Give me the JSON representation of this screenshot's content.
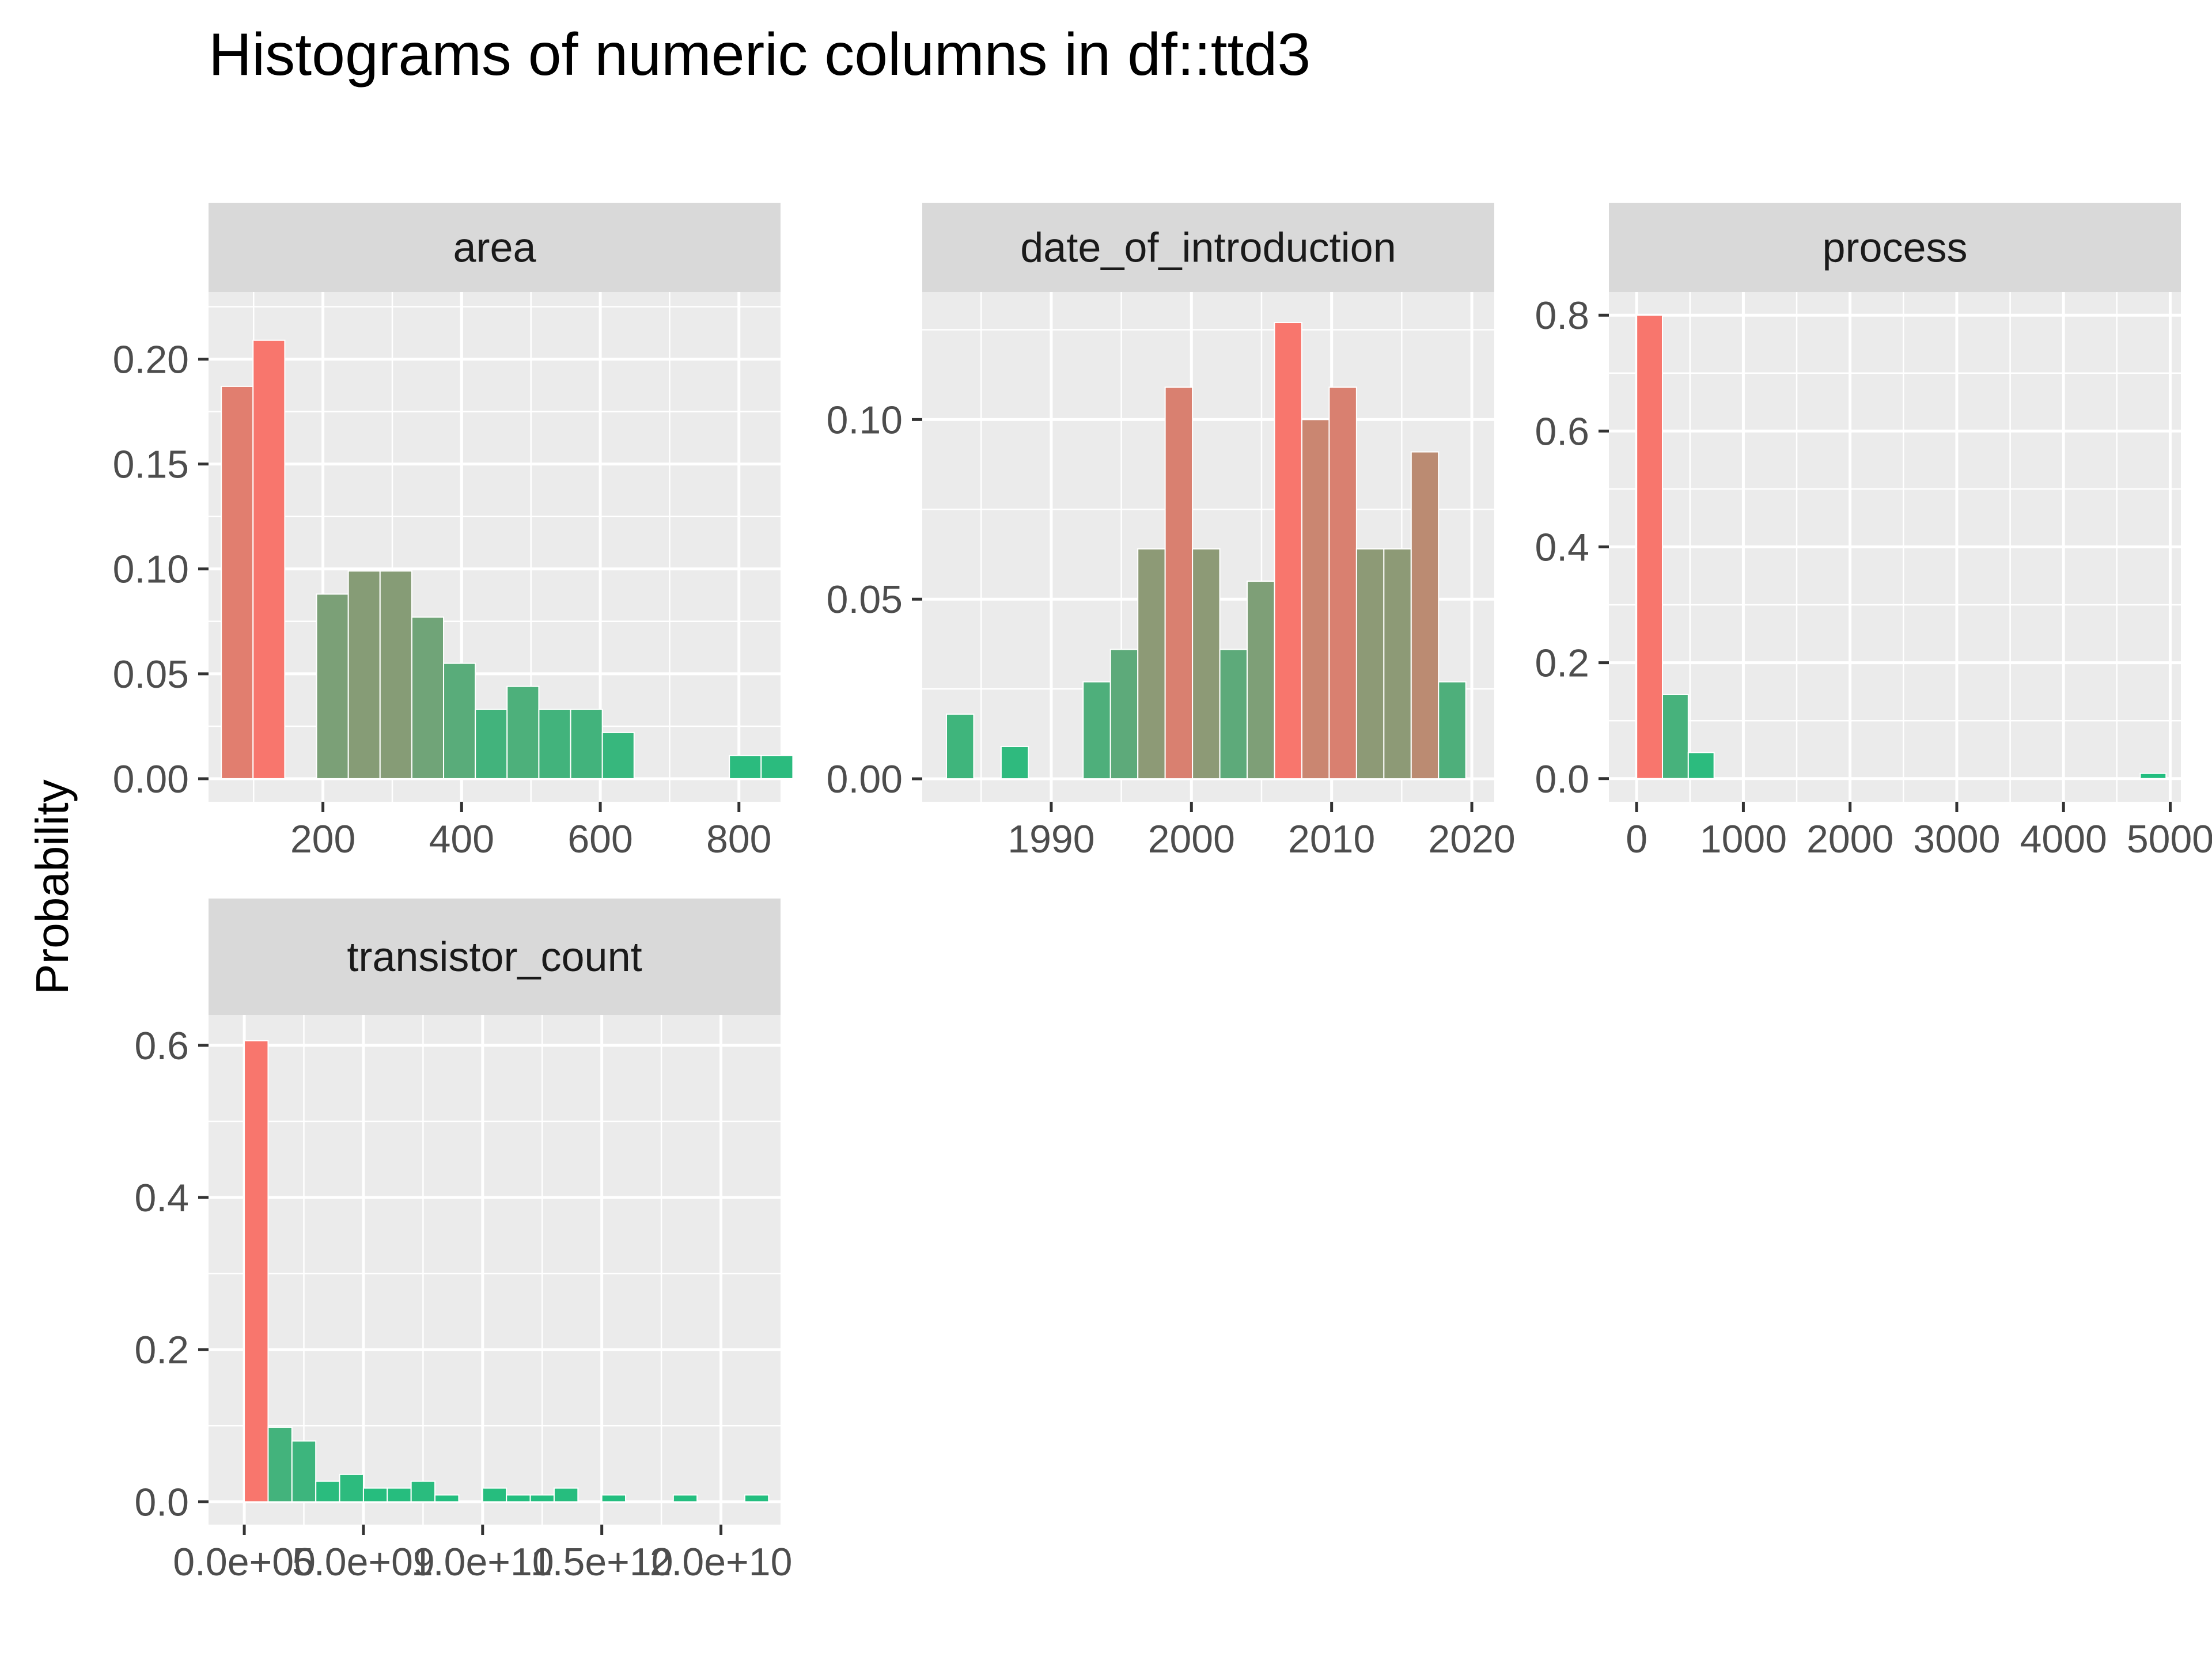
{
  "chart_data": {
    "type": "bar",
    "title": "Histograms of numeric columns in df::ttd3",
    "ylabel": "Probability",
    "xlabel": "",
    "legend": "none",
    "grid": true,
    "colors": {
      "low": "#20BF7F",
      "high": "#F8766D",
      "panel_background": "#EBEBEB",
      "strip_background": "#D9D9D9",
      "gridline": "#FFFFFF"
    },
    "facets": [
      {
        "name": "area",
        "xlim": [
          35,
          860
        ],
        "ylim": [
          -0.011,
          0.232
        ],
        "bin_width": 45.8,
        "x_ticks": [
          200,
          400,
          600,
          800
        ],
        "x_tick_labels": [
          "200",
          "400",
          "600",
          "800"
        ],
        "y_ticks": [
          0.0,
          0.05,
          0.1,
          0.15,
          0.2
        ],
        "y_tick_labels": [
          "0.00",
          "0.05",
          "0.10",
          "0.15",
          "0.20"
        ],
        "bins": [
          {
            "x": 76.3,
            "y": 0.187
          },
          {
            "x": 122.1,
            "y": 0.209
          },
          {
            "x": 167.9,
            "y": 0.0
          },
          {
            "x": 213.7,
            "y": 0.088
          },
          {
            "x": 259.5,
            "y": 0.099
          },
          {
            "x": 305.3,
            "y": 0.099
          },
          {
            "x": 351.1,
            "y": 0.077
          },
          {
            "x": 396.9,
            "y": 0.055
          },
          {
            "x": 442.7,
            "y": 0.033
          },
          {
            "x": 488.5,
            "y": 0.044
          },
          {
            "x": 534.3,
            "y": 0.033
          },
          {
            "x": 580.1,
            "y": 0.033
          },
          {
            "x": 625.9,
            "y": 0.022
          },
          {
            "x": 671.7,
            "y": 0.0
          },
          {
            "x": 717.5,
            "y": 0.0
          },
          {
            "x": 763.3,
            "y": 0.0
          },
          {
            "x": 809.1,
            "y": 0.011
          },
          {
            "x": 854.9,
            "y": 0.011
          }
        ]
      },
      {
        "name": "date_of_introduction",
        "xlim": [
          1980.8,
          2021.6
        ],
        "ylim": [
          -0.0064,
          0.1355
        ],
        "bin_width": 1.95,
        "x_ticks": [
          1990,
          2000,
          2010,
          2020
        ],
        "x_tick_labels": [
          "1990",
          "2000",
          "2010",
          "2020"
        ],
        "y_ticks": [
          0.0,
          0.05,
          0.1
        ],
        "y_tick_labels": [
          "0.00",
          "0.05",
          "0.10"
        ],
        "bins": [
          {
            "x": 1983.5,
            "y": 0.018
          },
          {
            "x": 1985.45,
            "y": 0.0
          },
          {
            "x": 1987.4,
            "y": 0.009
          },
          {
            "x": 1989.35,
            "y": 0.0
          },
          {
            "x": 1991.3,
            "y": 0.0
          },
          {
            "x": 1993.25,
            "y": 0.027
          },
          {
            "x": 1995.2,
            "y": 0.036
          },
          {
            "x": 1997.15,
            "y": 0.064
          },
          {
            "x": 1999.1,
            "y": 0.109
          },
          {
            "x": 2001.05,
            "y": 0.064
          },
          {
            "x": 2003.0,
            "y": 0.036
          },
          {
            "x": 2004.95,
            "y": 0.055
          },
          {
            "x": 2006.9,
            "y": 0.127
          },
          {
            "x": 2008.85,
            "y": 0.1
          },
          {
            "x": 2010.8,
            "y": 0.109
          },
          {
            "x": 2012.75,
            "y": 0.064
          },
          {
            "x": 2014.7,
            "y": 0.064
          },
          {
            "x": 2016.65,
            "y": 0.091
          },
          {
            "x": 2018.6,
            "y": 0.027
          }
        ]
      },
      {
        "name": "process",
        "xlim": [
          -260,
          5100
        ],
        "ylim": [
          -0.04,
          0.84
        ],
        "bin_width": 242,
        "x_ticks": [
          0,
          1000,
          2000,
          3000,
          4000,
          5000
        ],
        "x_tick_labels": [
          "0",
          "1000",
          "2000",
          "3000",
          "4000",
          "5000"
        ],
        "y_ticks": [
          0.0,
          0.2,
          0.4,
          0.6,
          0.8
        ],
        "y_tick_labels": [
          "0.0",
          "0.2",
          "0.4",
          "0.6",
          "0.8"
        ],
        "bins": [
          {
            "x": 0,
            "y": 0.0
          },
          {
            "x": 121,
            "y": 0.8
          },
          {
            "x": 363,
            "y": 0.145
          },
          {
            "x": 605,
            "y": 0.045
          },
          {
            "x": 4840,
            "y": 0.009
          }
        ]
      },
      {
        "name": "transistor_count",
        "xlim": [
          -1500000000.0,
          22500000000.0
        ],
        "ylim": [
          -0.03,
          0.64
        ],
        "bin_width": 1000000000.0,
        "x_ticks": [
          0,
          5000000000.0,
          10000000000.0,
          15000000000.0,
          20000000000.0
        ],
        "x_tick_labels": [
          "0.0e+00",
          "5.0e+09",
          "1.0e+10",
          "1.5e+10",
          "2.0e+10"
        ],
        "y_ticks": [
          0.0,
          0.2,
          0.4,
          0.6
        ],
        "y_tick_labels": [
          "0.0",
          "0.2",
          "0.4",
          "0.6"
        ],
        "bins": [
          {
            "x": 500000000.0,
            "y": 0.606
          },
          {
            "x": 1500000000.0,
            "y": 0.098
          },
          {
            "x": 2500000000.0,
            "y": 0.08
          },
          {
            "x": 3500000000.0,
            "y": 0.027
          },
          {
            "x": 4500000000.0,
            "y": 0.036
          },
          {
            "x": 5500000000.0,
            "y": 0.018
          },
          {
            "x": 6500000000.0,
            "y": 0.018
          },
          {
            "x": 7500000000.0,
            "y": 0.027
          },
          {
            "x": 8500000000.0,
            "y": 0.009
          },
          {
            "x": 9500000000.0,
            "y": 0.0
          },
          {
            "x": 10500000000.0,
            "y": 0.018
          },
          {
            "x": 11500000000.0,
            "y": 0.009
          },
          {
            "x": 12500000000.0,
            "y": 0.009
          },
          {
            "x": 13500000000.0,
            "y": 0.018
          },
          {
            "x": 14500000000.0,
            "y": 0.0
          },
          {
            "x": 15500000000.0,
            "y": 0.009
          },
          {
            "x": 16500000000.0,
            "y": 0.0
          },
          {
            "x": 17500000000.0,
            "y": 0.0
          },
          {
            "x": 18500000000.0,
            "y": 0.009
          },
          {
            "x": 19500000000.0,
            "y": 0.0
          },
          {
            "x": 20500000000.0,
            "y": 0.0
          },
          {
            "x": 21500000000.0,
            "y": 0.009
          }
        ]
      }
    ]
  }
}
